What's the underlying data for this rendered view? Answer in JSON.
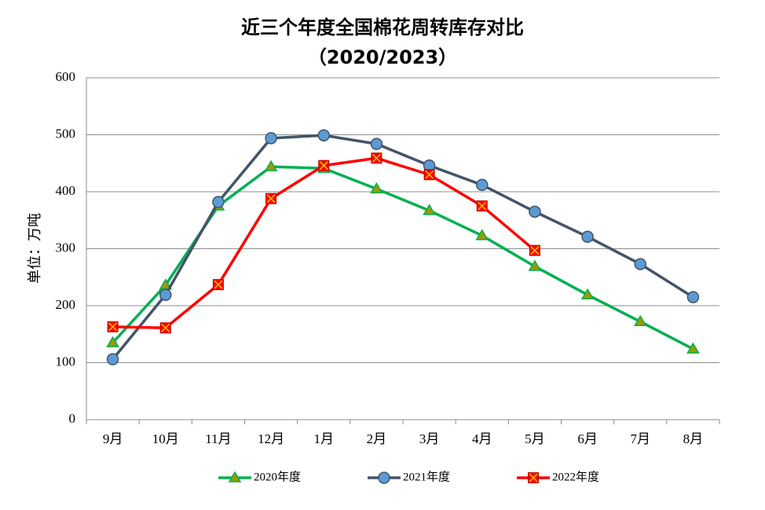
{
  "chart_data": {
    "type": "line",
    "title": "近三个年度全国棉花周转库存对比",
    "subtitle": "（2020/2023）",
    "y_label": "单位：万吨",
    "categories": [
      "9月",
      "10月",
      "11月",
      "12月",
      "1月",
      "2月",
      "3月",
      "4月",
      "5月",
      "6月",
      "7月",
      "8月"
    ],
    "series": [
      {
        "name": "2020年度",
        "color": "#00b050",
        "marker": "triangle",
        "marker_color": "#9c9a00",
        "values": [
          135,
          236,
          375,
          444,
          441,
          405,
          367,
          323,
          269,
          219,
          172,
          124
        ]
      },
      {
        "name": "2021年度",
        "color": "#44546a",
        "marker": "circle",
        "marker_color": "#5b9bd5",
        "values": [
          106,
          219,
          382,
          494,
          499,
          484,
          446,
          412,
          365,
          321,
          273,
          215
        ]
      },
      {
        "name": "2022年度",
        "color": "#ff0000",
        "marker": "square",
        "marker_color": "#ff0000",
        "values": [
          163,
          161,
          237,
          388,
          446,
          459,
          430,
          375,
          297,
          null,
          null,
          null
        ]
      }
    ],
    "ylim": [
      0,
      600
    ],
    "yticks": [
      0,
      100,
      200,
      300,
      400,
      500,
      600
    ],
    "grid": true,
    "legend": "bottom"
  }
}
